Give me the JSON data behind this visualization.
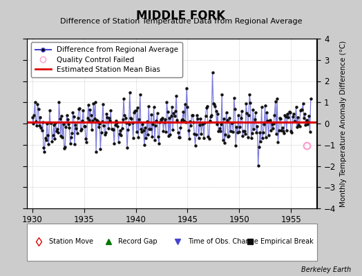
{
  "title": "MIDDLE FORK",
  "subtitle": "Difference of Station Temperature Data from Regional Average",
  "ylabel": "Monthly Temperature Anomaly Difference (°C)",
  "xlim": [
    1929.5,
    1957.5
  ],
  "ylim": [
    -4,
    4
  ],
  "yticks": [
    -4,
    -3,
    -2,
    -1,
    0,
    1,
    2,
    3,
    4
  ],
  "xticks": [
    1930,
    1935,
    1940,
    1945,
    1950,
    1955
  ],
  "mean_bias": 0.07,
  "bias_color": "#dd0000",
  "line_color": "#4444cc",
  "line_alpha": 0.7,
  "marker_color": "#111111",
  "qc_color": "#ff99cc",
  "background_color": "#cccccc",
  "plot_bg_color": "#ffffff",
  "grid_color": "#aaaaaa",
  "watermark": "Berkeley Earth",
  "seed": 42,
  "n_points": 324,
  "start_year": 1930,
  "qc_year": 1956.5,
  "qc_value": -1.05
}
